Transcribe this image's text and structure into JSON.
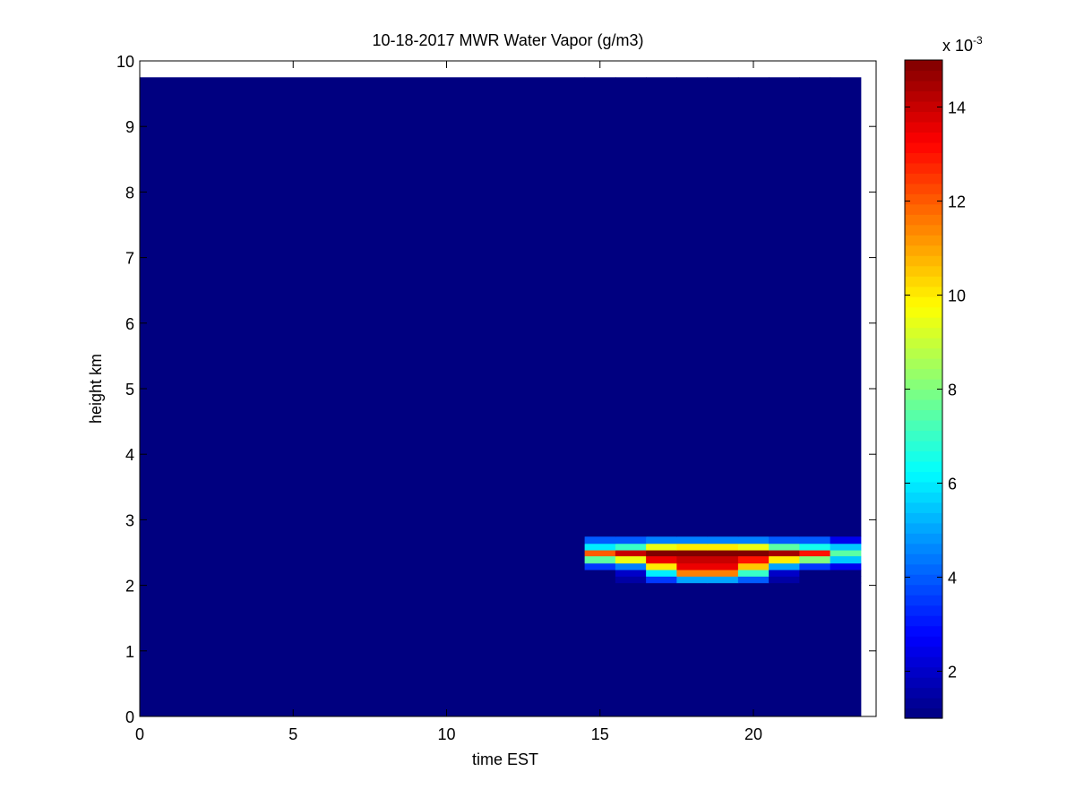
{
  "chart_data": {
    "type": "heatmap",
    "title": "10-18-2017 MWR Water Vapor (g/m3)",
    "x_label": "time EST",
    "y_label": "height km",
    "xlim": [
      0,
      24
    ],
    "xticks": [
      0,
      5,
      10,
      15,
      20
    ],
    "ylim": [
      0,
      10
    ],
    "yticks": [
      0,
      1,
      2,
      3,
      4,
      5,
      6,
      7,
      8,
      9,
      10
    ],
    "x_edges": [
      0,
      14.5,
      15.5,
      16.5,
      17.5,
      18.5,
      19.5,
      20.5,
      21.5,
      22.5,
      23.5
    ],
    "y_edges": [
      0,
      2.04,
      2.14,
      2.24,
      2.34,
      2.45,
      2.54,
      2.64,
      2.75,
      9.75
    ],
    "z": [
      [
        1,
        1,
        1,
        1,
        1,
        1,
        1,
        1,
        1,
        1
      ],
      [
        1,
        1,
        1.5,
        3.5,
        5,
        5,
        4,
        1.5,
        1,
        1
      ],
      [
        1,
        1,
        2,
        6,
        11.5,
        11.5,
        7,
        2,
        1,
        1
      ],
      [
        1,
        3.5,
        4.5,
        10,
        13.5,
        13.5,
        10.5,
        5,
        3.5,
        2.5
      ],
      [
        1,
        7.5,
        9.5,
        13.5,
        14,
        14,
        13,
        10,
        8,
        5.5
      ],
      [
        1,
        12,
        14,
        15,
        15,
        15,
        15,
        14.5,
        13,
        7.5
      ],
      [
        1,
        6,
        7,
        9.5,
        10,
        10,
        9.5,
        7.5,
        6.5,
        5.5
      ],
      [
        1,
        4,
        4,
        4.5,
        4.5,
        4.5,
        4.5,
        4,
        4,
        2.5
      ],
      [
        1,
        1,
        1,
        1,
        1,
        1,
        1,
        1,
        1,
        1
      ]
    ],
    "colormap": "jet",
    "clim": [
      1,
      15
    ],
    "cticks": [
      2,
      4,
      6,
      8,
      10,
      12,
      14
    ],
    "colorbar_scale": {
      "base": "x 10",
      "exponent": "-3"
    }
  }
}
